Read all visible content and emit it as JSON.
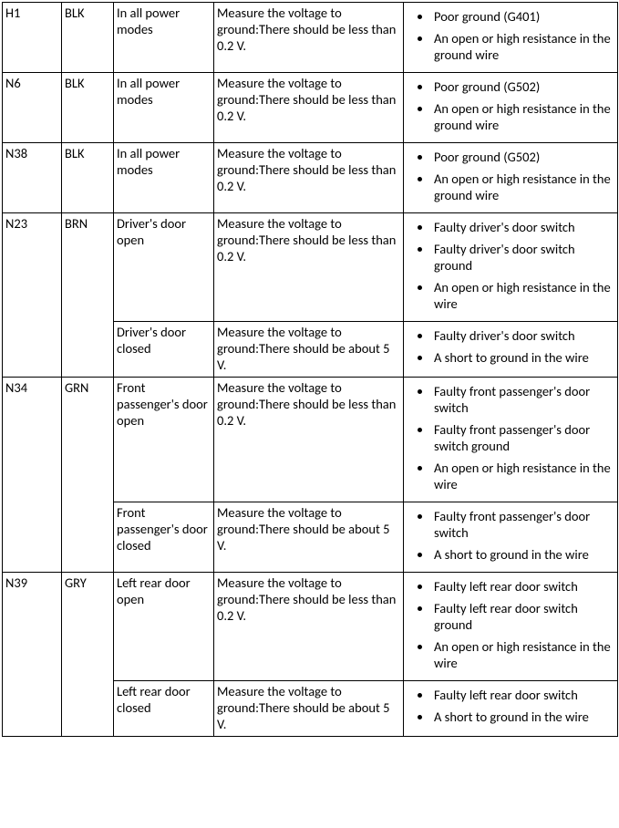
{
  "rows": [
    {
      "cav": "H1",
      "color": "BLK",
      "condition": "In all power modes",
      "spec": "Measure the voltage to ground:There should be less than 0.2 V.",
      "causes": [
        "Poor ground (G401)",
        "An open or high resistance in the ground wire"
      ]
    },
    {
      "cav": "N6",
      "color": "BLK",
      "condition": "In all power modes",
      "spec": "Measure the voltage to ground:There should be less than 0.2 V.",
      "causes": [
        "Poor ground (G502)",
        "An open or high resistance in the ground wire"
      ]
    },
    {
      "cav": "N38",
      "color": "BLK",
      "condition": "In all power modes",
      "spec": "Measure the voltage to ground:There should be less than 0.2 V.",
      "causes": [
        "Poor ground (G502)",
        "An open or high resistance in the ground wire"
      ]
    },
    {
      "cav": "N23",
      "color": "BRN",
      "subrows": [
        {
          "condition": "Driver's door open",
          "spec": "Measure the voltage to ground:There should be less than 0.2 V.",
          "causes": [
            "Faulty driver's door switch",
            "Faulty driver's door switch ground",
            "An open or high resistance in the wire"
          ]
        },
        {
          "condition": "Driver's door closed",
          "spec": "Measure the voltage to ground:There should be about 5 V.",
          "causes": [
            "Faulty driver's door switch",
            "A short to ground in the wire"
          ]
        }
      ]
    },
    {
      "cav": "N34",
      "color": "GRN",
      "subrows": [
        {
          "condition": "Front passenger's door open",
          "spec": "Measure the voltage to ground:There should be less than 0.2 V.",
          "causes": [
            "Faulty front passenger's door switch",
            "Faulty front passenger's door switch ground",
            "An open or high resistance in the wire"
          ]
        },
        {
          "condition": "Front passenger's door closed",
          "spec": "Measure the voltage to ground:There should be about 5 V.",
          "causes": [
            "Faulty front passenger's door switch",
            "A short to ground in the wire"
          ]
        }
      ]
    },
    {
      "cav": "N39",
      "color": "GRY",
      "subrows": [
        {
          "condition": "Left rear door open",
          "spec": "Measure the voltage to ground:There should be less than 0.2 V.",
          "causes": [
            "Faulty left rear door switch",
            "Faulty left rear door switch ground",
            "An open or high resistance in the wire"
          ]
        },
        {
          "condition": "Left rear door closed",
          "spec": "Measure the voltage to ground:There should be about 5 V.",
          "causes": [
            "Faulty left rear door switch",
            "A short to ground in the wire"
          ]
        }
      ]
    }
  ]
}
